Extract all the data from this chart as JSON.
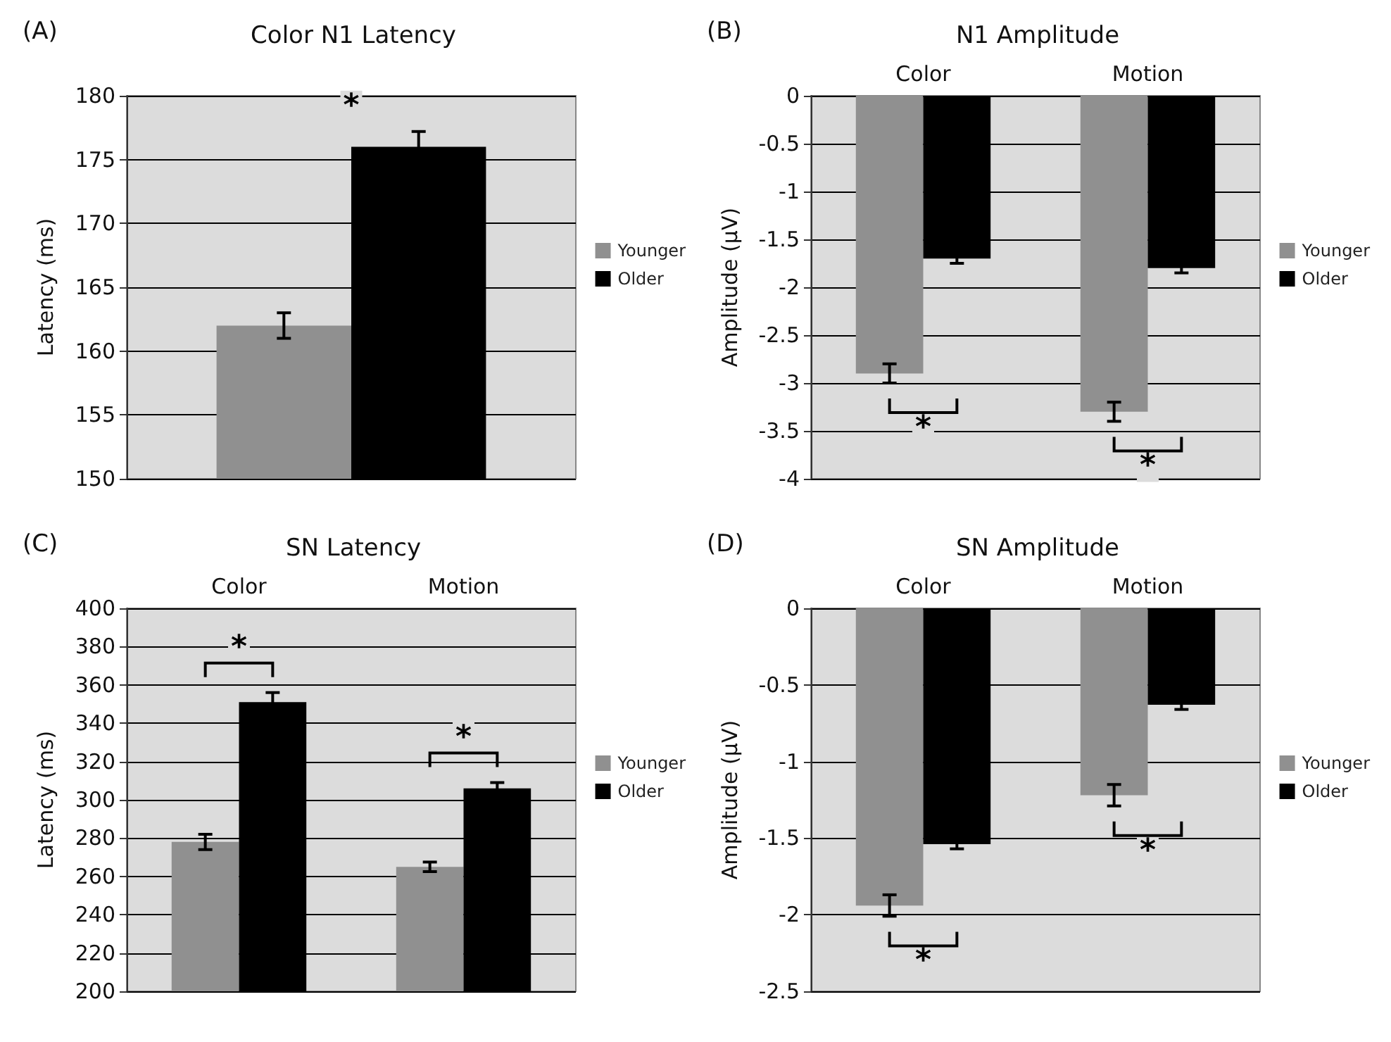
{
  "chart_data": [
    {
      "type": "bar",
      "title": "Color N1 Latency",
      "ylabel": "Latency (ms)",
      "categories": [
        null
      ],
      "series": [
        {
          "name": "Younger",
          "color": "#909090",
          "values": [
            162
          ],
          "errors": [
            1
          ]
        },
        {
          "name": "Older",
          "color": "#000000",
          "values": [
            176
          ],
          "errors": [
            1.2
          ]
        }
      ],
      "ylim": [
        150,
        180
      ],
      "yticks": [
        150,
        155,
        160,
        165,
        170,
        175,
        180
      ],
      "grid": "y",
      "legend": "right",
      "annotations": [
        "(A)",
        "*"
      ]
    },
    {
      "type": "bar",
      "title": "N1 Amplitude",
      "ylabel": "Amplitude (µV)",
      "categories": [
        "Color",
        "Motion"
      ],
      "series": [
        {
          "name": "Younger",
          "color": "#909090",
          "values": [
            -2.9,
            -3.3
          ],
          "errors": [
            0.1,
            0.1
          ]
        },
        {
          "name": "Older",
          "color": "#000000",
          "values": [
            -1.7,
            -1.8
          ],
          "errors": [
            0.05,
            0.05
          ]
        }
      ],
      "ylim": [
        -4,
        0
      ],
      "yticks": [
        -4,
        -3.5,
        -3,
        -2.5,
        -2,
        -1.5,
        -1,
        -0.5,
        0
      ],
      "grid": "y",
      "legend": "right",
      "annotations": [
        "(B)",
        "*",
        "*"
      ]
    },
    {
      "type": "bar",
      "title": "SN Latency",
      "ylabel": "Latency (ms)",
      "categories": [
        "Color",
        "Motion"
      ],
      "series": [
        {
          "name": "Younger",
          "color": "#909090",
          "values": [
            278,
            265
          ],
          "errors": [
            4,
            2.5
          ]
        },
        {
          "name": "Older",
          "color": "#000000",
          "values": [
            351,
            306
          ],
          "errors": [
            5,
            3
          ]
        }
      ],
      "ylim": [
        200,
        400
      ],
      "yticks": [
        200,
        220,
        240,
        260,
        280,
        300,
        320,
        340,
        360,
        380,
        400
      ],
      "grid": "y",
      "legend": "right",
      "annotations": [
        "(C)",
        "*",
        "*"
      ]
    },
    {
      "type": "bar",
      "title": "SN Amplitude",
      "ylabel": "Amplitude (µV)",
      "categories": [
        "Color",
        "Motion"
      ],
      "series": [
        {
          "name": "Younger",
          "color": "#909090",
          "values": [
            -1.94,
            -1.22
          ],
          "errors": [
            0.07,
            0.07
          ]
        },
        {
          "name": "Older",
          "color": "#000000",
          "values": [
            -1.54,
            -0.63
          ],
          "errors": [
            0.03,
            0.03
          ]
        }
      ],
      "ylim": [
        -2.5,
        0
      ],
      "yticks": [
        -2.5,
        -2,
        -1.5,
        -1,
        -0.5,
        0
      ],
      "grid": "y",
      "legend": "right",
      "annotations": [
        "(D)",
        "*",
        "*"
      ]
    }
  ]
}
